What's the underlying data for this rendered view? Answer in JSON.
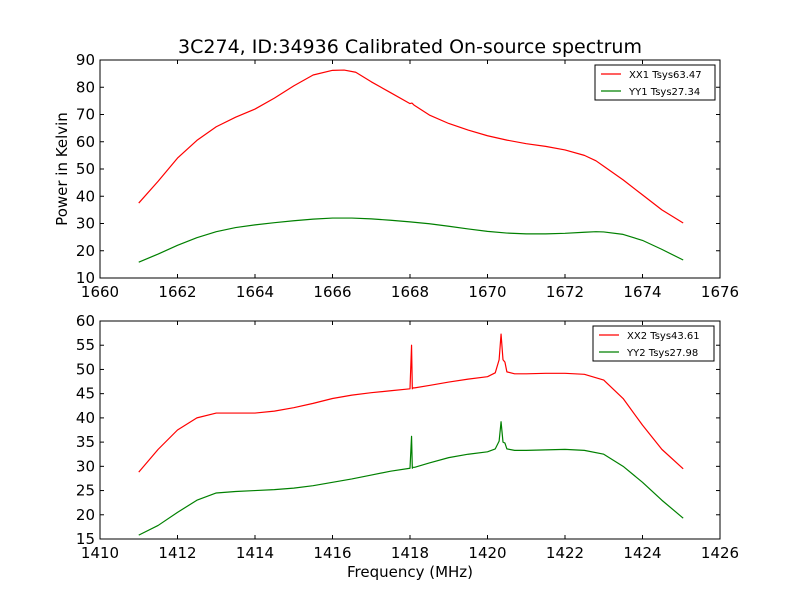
{
  "figure_title": "3C274, ID:34936 Calibrated On-source spectrum",
  "chart_data": [
    {
      "type": "line",
      "xlabel": "",
      "ylabel": "Power in Kelvin",
      "xlim": [
        1660,
        1676
      ],
      "ylim": [
        10,
        90
      ],
      "xticks": [
        1660,
        1662,
        1664,
        1666,
        1668,
        1670,
        1672,
        1674,
        1676
      ],
      "yticks": [
        10,
        20,
        30,
        40,
        50,
        60,
        70,
        80,
        90
      ],
      "legend_position": "top-right",
      "grid": false,
      "series": [
        {
          "name": "XX1 Tsys63.47",
          "color": "#ff0000",
          "x": [
            1661.0,
            1661.5,
            1662.0,
            1662.5,
            1663.0,
            1663.5,
            1664.0,
            1664.5,
            1665.0,
            1665.5,
            1666.0,
            1666.3,
            1666.6,
            1667.0,
            1667.5,
            1668.0,
            1668.05,
            1668.1,
            1668.5,
            1669.0,
            1669.5,
            1670.0,
            1670.5,
            1671.0,
            1671.5,
            1672.0,
            1672.5,
            1672.8,
            1673.0,
            1673.5,
            1674.0,
            1674.5,
            1675.05
          ],
          "y": [
            37.5,
            45.5,
            54.0,
            60.5,
            65.5,
            69.0,
            72.0,
            76.0,
            80.5,
            84.5,
            86.2,
            86.3,
            85.5,
            82.0,
            78.0,
            74.0,
            74.2,
            73.5,
            69.8,
            66.7,
            64.3,
            62.2,
            60.6,
            59.3,
            58.3,
            57.0,
            55.0,
            53.0,
            51.0,
            46.0,
            40.5,
            35.0,
            30.2
          ]
        },
        {
          "name": "YY1 Tsys27.34",
          "color": "#008000",
          "x": [
            1661.0,
            1661.5,
            1662.0,
            1662.5,
            1663.0,
            1663.5,
            1664.0,
            1664.5,
            1665.0,
            1665.5,
            1666.0,
            1666.5,
            1667.0,
            1667.5,
            1668.0,
            1668.5,
            1669.0,
            1669.5,
            1670.0,
            1670.5,
            1671.0,
            1671.5,
            1672.0,
            1672.5,
            1672.8,
            1673.0,
            1673.5,
            1674.0,
            1674.5,
            1675.05
          ],
          "y": [
            15.8,
            18.8,
            22.0,
            24.8,
            27.0,
            28.5,
            29.5,
            30.3,
            31.0,
            31.6,
            32.0,
            32.0,
            31.7,
            31.2,
            30.6,
            29.9,
            29.0,
            28.0,
            27.1,
            26.5,
            26.2,
            26.2,
            26.4,
            26.8,
            27.0,
            26.9,
            26.0,
            23.8,
            20.5,
            16.6
          ]
        }
      ]
    },
    {
      "type": "line",
      "xlabel": "Frequency (MHz)",
      "ylabel": "",
      "xlim": [
        1410,
        1426
      ],
      "ylim": [
        15,
        60
      ],
      "xticks": [
        1410,
        1412,
        1414,
        1416,
        1418,
        1420,
        1422,
        1424,
        1426
      ],
      "yticks": [
        15,
        20,
        25,
        30,
        35,
        40,
        45,
        50,
        55,
        60
      ],
      "legend_position": "top-right",
      "grid": false,
      "series": [
        {
          "name": "XX2 Tsys43.61",
          "color": "#ff0000",
          "x": [
            1411.0,
            1411.5,
            1412.0,
            1412.5,
            1413.0,
            1413.5,
            1414.0,
            1414.5,
            1415.0,
            1415.5,
            1416.0,
            1416.5,
            1417.0,
            1417.5,
            1418.0,
            1418.04,
            1418.06,
            1418.08,
            1418.12,
            1418.5,
            1419.0,
            1419.5,
            1420.0,
            1420.2,
            1420.3,
            1420.35,
            1420.4,
            1420.45,
            1420.5,
            1420.7,
            1421.0,
            1421.5,
            1422.0,
            1422.5,
            1423.0,
            1423.5,
            1424.0,
            1424.5,
            1425.05
          ],
          "y": [
            28.8,
            33.5,
            37.5,
            40.0,
            41.0,
            41.0,
            41.0,
            41.4,
            42.1,
            43.0,
            44.0,
            44.7,
            45.2,
            45.6,
            46.0,
            55.0,
            46.0,
            46.2,
            46.2,
            46.7,
            47.4,
            48.0,
            48.5,
            49.3,
            52.0,
            57.3,
            52.0,
            51.5,
            49.5,
            49.1,
            49.1,
            49.2,
            49.2,
            49.0,
            47.8,
            44.0,
            38.5,
            33.5,
            29.5
          ]
        },
        {
          "name": "YY2 Tsys27.98",
          "color": "#008000",
          "x": [
            1411.0,
            1411.5,
            1412.0,
            1412.5,
            1413.0,
            1413.5,
            1414.0,
            1414.5,
            1415.0,
            1415.5,
            1416.0,
            1416.5,
            1417.0,
            1417.5,
            1418.0,
            1418.04,
            1418.06,
            1418.08,
            1418.12,
            1418.5,
            1419.0,
            1419.5,
            1420.0,
            1420.2,
            1420.3,
            1420.35,
            1420.4,
            1420.45,
            1420.5,
            1420.7,
            1421.0,
            1421.5,
            1422.0,
            1422.5,
            1423.0,
            1423.5,
            1424.0,
            1424.5,
            1425.05
          ],
          "y": [
            15.8,
            17.8,
            20.5,
            23.0,
            24.5,
            24.8,
            25.0,
            25.2,
            25.5,
            26.0,
            26.7,
            27.4,
            28.2,
            29.0,
            29.6,
            36.2,
            29.6,
            29.8,
            29.8,
            30.7,
            31.8,
            32.5,
            33.0,
            33.6,
            35.2,
            39.2,
            35.0,
            34.8,
            33.6,
            33.3,
            33.3,
            33.4,
            33.5,
            33.3,
            32.5,
            30.0,
            26.7,
            23.0,
            19.3
          ]
        }
      ]
    }
  ]
}
